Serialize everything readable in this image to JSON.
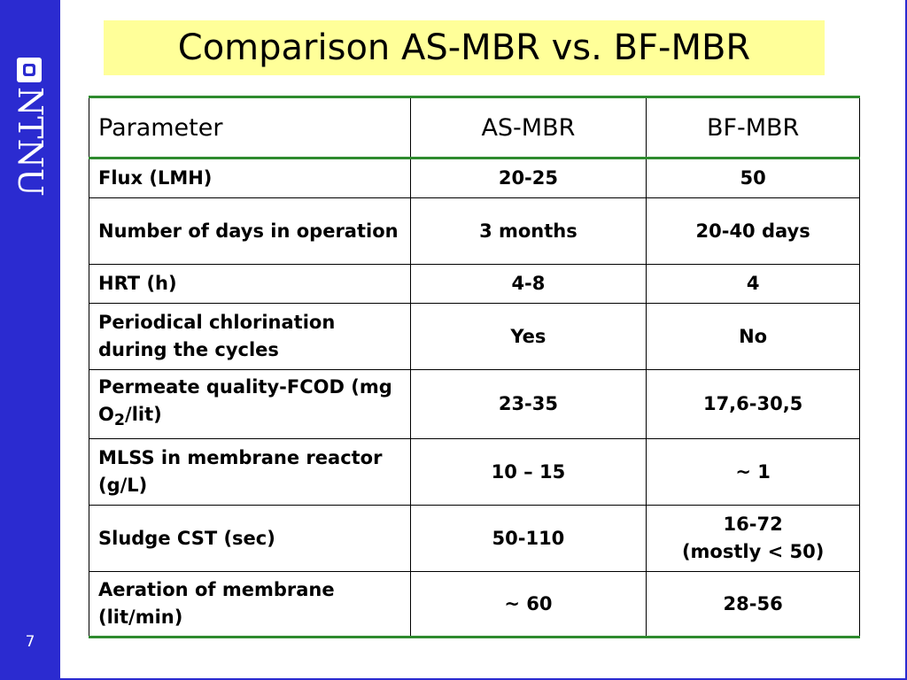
{
  "logo": {
    "mark_icon": "ntnu-square-logo-icon",
    "text": "NTNU"
  },
  "slide_number": "7",
  "title": "Comparison AS-MBR vs. BF-MBR",
  "table": {
    "headers": [
      "Parameter",
      "AS-MBR",
      "BF-MBR"
    ],
    "rows": [
      {
        "parameter": "Flux (LMH)",
        "as_mbr": "20-25",
        "bf_mbr": "50"
      },
      {
        "parameter": "Number of days in operation",
        "as_mbr": "3 months",
        "bf_mbr": "20-40 days"
      },
      {
        "parameter": "HRT (h)",
        "as_mbr": "4-8",
        "bf_mbr": "4"
      },
      {
        "parameter": "Periodical chlorination during the cycles",
        "as_mbr": "Yes",
        "bf_mbr": "No"
      },
      {
        "parameter_pre": "Permeate quality-FCOD (mg O",
        "parameter_sub": "2",
        "parameter_post": "/lit)",
        "as_mbr": "23-35",
        "bf_mbr": "17,6-30,5"
      },
      {
        "parameter": "MLSS in membrane reactor (g/L)",
        "as_mbr": "10 – 15",
        "bf_mbr": "~ 1"
      },
      {
        "parameter": "Sludge CST (sec)",
        "as_mbr": "50-110",
        "bf_mbr_line1": "16-72",
        "bf_mbr_line2": "(mostly < 50)"
      },
      {
        "parameter": "Aeration of membrane (lit/min)",
        "as_mbr": "~ 60",
        "bf_mbr": "28-56"
      }
    ]
  },
  "colors": {
    "sidebar": "#2b2bd0",
    "title_background": "#ffff99",
    "table_rule": "#2e8b2e"
  }
}
